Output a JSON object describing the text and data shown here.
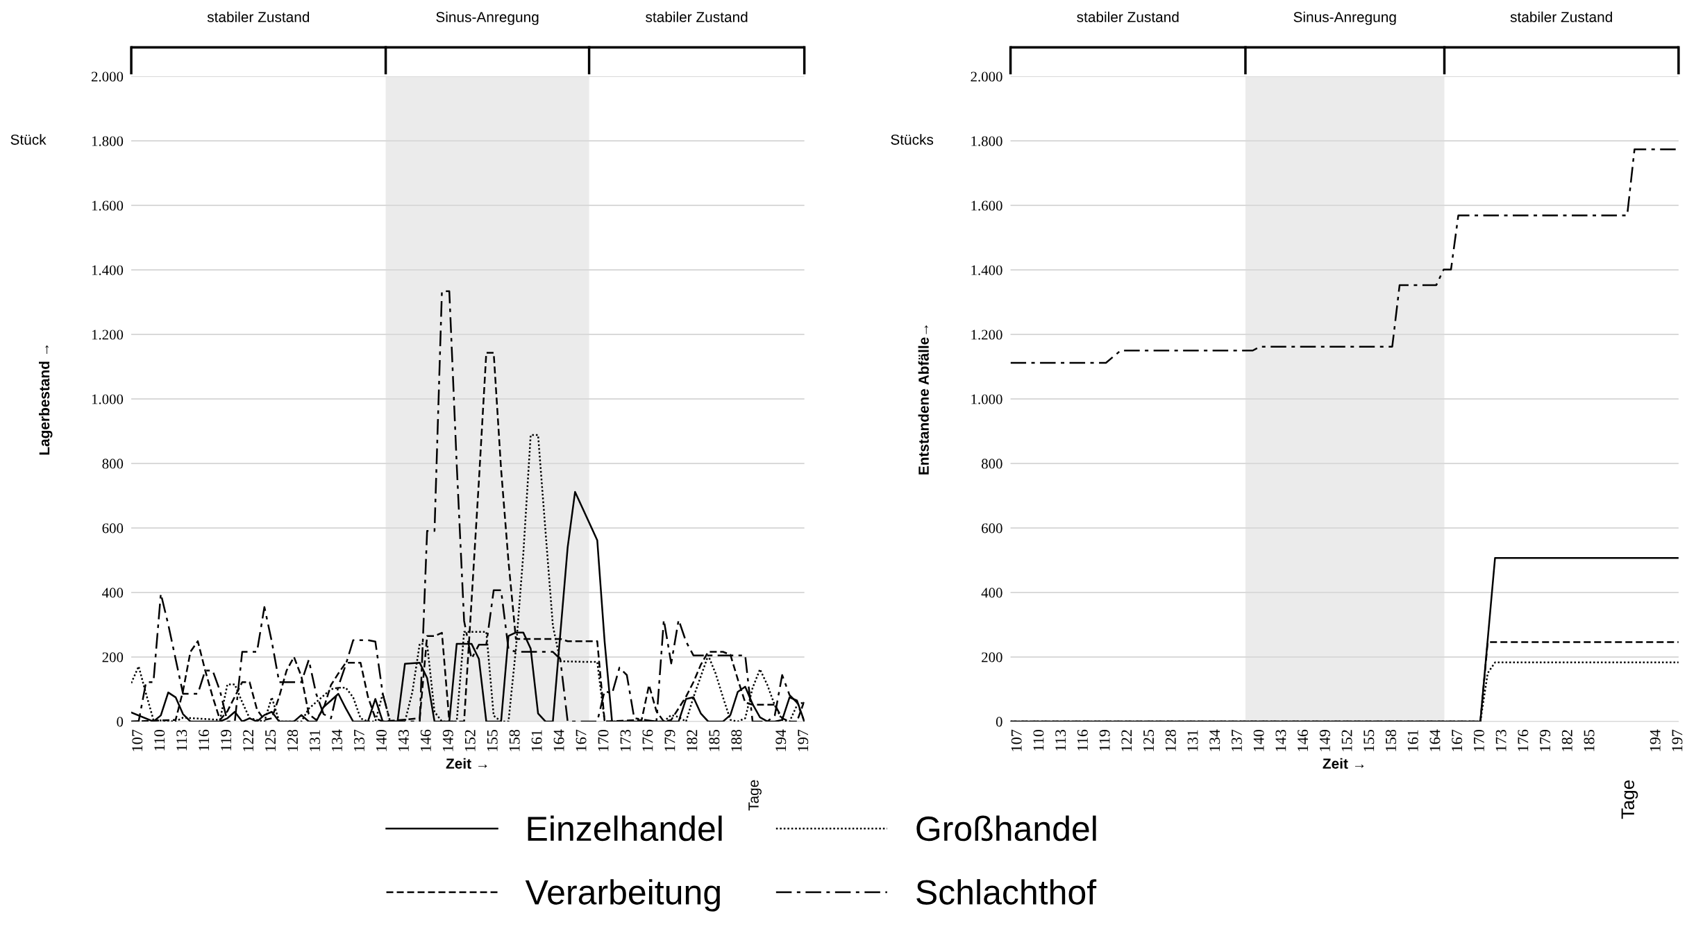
{
  "chart_data": [
    {
      "type": "line",
      "xlabel": "Zeit →",
      "ylabel": "Lagerbestand →",
      "annotations": [
        "stabiler Zustand",
        "Sinus-Anregung",
        "stabiler Zustand",
        "Stück",
        "Tage"
      ],
      "xlim": [
        106,
        197
      ],
      "xticks": [
        107,
        110,
        113,
        116,
        119,
        122,
        125,
        128,
        131,
        134,
        137,
        140,
        143,
        146,
        149,
        152,
        155,
        158,
        161,
        164,
        167,
        170,
        173,
        176,
        179,
        182,
        185,
        188,
        194,
        197
      ],
      "ylim": [
        0,
        2000
      ],
      "yticks": [
        0,
        200,
        400,
        600,
        800,
        {
          "value": 1000,
          "label": "1.000"
        },
        {
          "value": 1200,
          "label": "1.200"
        },
        {
          "value": 1400,
          "label": "1.400"
        },
        {
          "value": 1600,
          "label": "1.600"
        },
        {
          "value": 1800,
          "label": "1.800"
        },
        {
          "value": 2000,
          "label": "2.000"
        }
      ],
      "grid": "y",
      "legend": "bottom",
      "bands": [
        {
          "axis": "x",
          "from": 140.4,
          "to": 167.9,
          "color": "#ebebeb"
        }
      ],
      "series": [
        {
          "name": "Einzelhandel",
          "color": "#000000",
          "line_style": "solid",
          "x": [
            106,
            109,
            110,
            111,
            112,
            113,
            114,
            118,
            119,
            120,
            121,
            122,
            123,
            124,
            125,
            126,
            128,
            129,
            130,
            131,
            132,
            133,
            134,
            135,
            136,
            138,
            139,
            140,
            142,
            143,
            145,
            146,
            147,
            149,
            150,
            152,
            153,
            154,
            156,
            157,
            158,
            159,
            160,
            161,
            162,
            163,
            165,
            166,
            169,
            170,
            171,
            180,
            181,
            182,
            183,
            184,
            186,
            187,
            188,
            189,
            190,
            191,
            192,
            193,
            194,
            195,
            196,
            197
          ],
          "values": [
            28,
            0,
            19,
            90,
            75,
            23,
            0,
            0,
            10,
            30,
            0,
            10,
            0,
            20,
            30,
            0,
            0,
            20,
            0,
            0,
            45,
            65,
            86,
            41,
            0,
            0,
            70,
            0,
            0,
            179,
            182,
            135,
            0,
            0,
            241,
            241,
            194,
            0,
            0,
            265,
            276,
            276,
            226,
            25,
            0,
            0,
            540,
            712,
            562,
            247,
            0,
            0,
            70,
            75,
            25,
            0,
            0,
            20,
            92,
            108,
            54,
            13,
            0,
            0,
            5,
            75,
            65,
            0
          ]
        },
        {
          "name": "Großhandel",
          "color": "#000000",
          "line_style": "dotted",
          "x": [
            106,
            107,
            108,
            109,
            112,
            113,
            118,
            119,
            120,
            121,
            122,
            124,
            125,
            126,
            129,
            130,
            131,
            132,
            133,
            134,
            135,
            136,
            137,
            138,
            139,
            140,
            141,
            143,
            144,
            145,
            146,
            147,
            148,
            150,
            151,
            154,
            155,
            156,
            157,
            158,
            159,
            160,
            161,
            162,
            163,
            164,
            167,
            169,
            170,
            178,
            179,
            180,
            181,
            182,
            183,
            184,
            185,
            186,
            187,
            188,
            189,
            190,
            191,
            192,
            193,
            194,
            195,
            196,
            197
          ],
          "values": [
            119,
            171,
            86,
            5,
            0,
            12,
            5,
            115,
            115,
            60,
            10,
            0,
            75,
            0,
            0,
            40,
            60,
            80,
            100,
            105,
            105,
            75,
            10,
            0,
            0,
            86,
            0,
            0,
            91,
            241,
            241,
            30,
            0,
            0,
            278,
            278,
            18,
            0,
            0,
            224,
            518,
            888,
            888,
            591,
            297,
            187,
            185,
            185,
            0,
            0,
            20,
            14,
            0,
            75,
            140,
            205,
            149,
            75,
            5,
            0,
            10,
            104,
            162,
            113,
            50,
            5,
            0,
            50,
            61
          ]
        },
        {
          "name": "Verarbeitung",
          "color": "#000000",
          "line_style": "dashed",
          "x": [
            106,
            112,
            113,
            114,
            115,
            116,
            117,
            118,
            119,
            120,
            121,
            122,
            123,
            124,
            125,
            126,
            127,
            128,
            129,
            130,
            131,
            132,
            133,
            134,
            135,
            137,
            138,
            139,
            140,
            145,
            146,
            147,
            148,
            149,
            151,
            152,
            153,
            154,
            155,
            156,
            157,
            158,
            164,
            165,
            169,
            170,
            175,
            176,
            177,
            178,
            179,
            180,
            181,
            182,
            183,
            184,
            186,
            187,
            188,
            189,
            190,
            193,
            194,
            195,
            196,
            197
          ],
          "values": [
            0,
            5,
            95,
            216,
            249,
            158,
            77,
            5,
            32,
            77,
            122,
            122,
            37,
            5,
            10,
            77,
            158,
            200,
            140,
            23,
            5,
            40,
            113,
            149,
            182,
            182,
            77,
            10,
            0,
            10,
            265,
            265,
            275,
            0,
            0,
            372,
            746,
            1143,
            1143,
            782,
            496,
            256,
            256,
            249,
            249,
            0,
            5,
            113,
            32,
            0,
            5,
            41,
            77,
            122,
            176,
            216,
            216,
            207,
            131,
            59,
            52,
            52,
            10,
            0,
            0,
            64
          ]
        },
        {
          "name": "Schlachthof",
          "color": "#000000",
          "line_style": "dashdot",
          "x": [
            106,
            107,
            108,
            109,
            110,
            111,
            113,
            115,
            116,
            117,
            118,
            119,
            120,
            121,
            123,
            124,
            125,
            126,
            129,
            130,
            131,
            132,
            133,
            134,
            135,
            136,
            138,
            139,
            140,
            141,
            145,
            146,
            147,
            148,
            149,
            150,
            151,
            152,
            153,
            154,
            155,
            156,
            157,
            158,
            163,
            164,
            165,
            169,
            170,
            171,
            172,
            173,
            174,
            177,
            178,
            179,
            180,
            181,
            182,
            188,
            189,
            190,
            192,
            193,
            194,
            195,
            196,
            197
          ],
          "values": [
            0,
            0,
            122,
            122,
            396,
            301,
            86,
            86,
            158,
            158,
            95,
            0,
            0,
            216,
            216,
            355,
            248,
            122,
            122,
            191,
            86,
            23,
            10,
            109,
            176,
            252,
            252,
            248,
            86,
            0,
            0,
            591,
            591,
            1334,
            1334,
            797,
            312,
            194,
            238,
            238,
            407,
            407,
            224,
            216,
            216,
            194,
            0,
            0,
            95,
            86,
            167,
            144,
            10,
            0,
            315,
            180,
            315,
            248,
            205,
            205,
            205,
            0,
            0,
            19,
            144,
            82,
            59,
            0
          ]
        }
      ]
    },
    {
      "type": "line",
      "xlabel": "Zeit →",
      "ylabel": "Entstandene Abfälle→",
      "annotations": [
        "stabiler Zustand",
        "Sinus-Anregung",
        "stabiler Zustand",
        "Stücks",
        "Tage"
      ],
      "xlim": [
        106,
        197
      ],
      "xticks": [
        107,
        110,
        113,
        116,
        119,
        122,
        125,
        128,
        131,
        134,
        137,
        140,
        143,
        146,
        149,
        152,
        155,
        158,
        161,
        164,
        167,
        170,
        173,
        176,
        179,
        182,
        185,
        194,
        197
      ],
      "ylim": [
        0,
        2000
      ],
      "yticks": [
        0,
        200,
        400,
        600,
        800,
        {
          "value": 1000,
          "label": "1.000"
        },
        {
          "value": 1200,
          "label": "1.200"
        },
        {
          "value": 1400,
          "label": "1.400"
        },
        {
          "value": 1600,
          "label": "1.600"
        },
        {
          "value": 1800,
          "label": "1.800"
        },
        {
          "value": 2000,
          "label": "2.000"
        }
      ],
      "grid": "y",
      "bands": [
        {
          "axis": "x",
          "from": 138.0,
          "to": 165.1,
          "color": "#ebebeb"
        }
      ],
      "series": [
        {
          "color": "#000000",
          "line_style": "solid",
          "x": [
            106,
            170,
            172,
            197
          ],
          "values": [
            0,
            0,
            507,
            507
          ]
        },
        {
          "color": "#000000",
          "line_style": "dotted",
          "x": [
            106,
            170,
            171,
            172,
            197
          ],
          "values": [
            0,
            0,
            150,
            183,
            183
          ]
        },
        {
          "color": "#000000",
          "line_style": "dashed",
          "x": [
            106,
            170,
            171,
            197
          ],
          "values": [
            0,
            0,
            246,
            246
          ]
        },
        {
          "color": "#000000",
          "line_style": "dashdot",
          "x": [
            106,
            119,
            121,
            139,
            140,
            158,
            159,
            164,
            165,
            166,
            167,
            190,
            191,
            197
          ],
          "values": [
            1112,
            1112,
            1150,
            1150,
            1162,
            1162,
            1353,
            1353,
            1401,
            1401,
            1569,
            1569,
            1774,
            1774
          ]
        }
      ]
    }
  ]
}
